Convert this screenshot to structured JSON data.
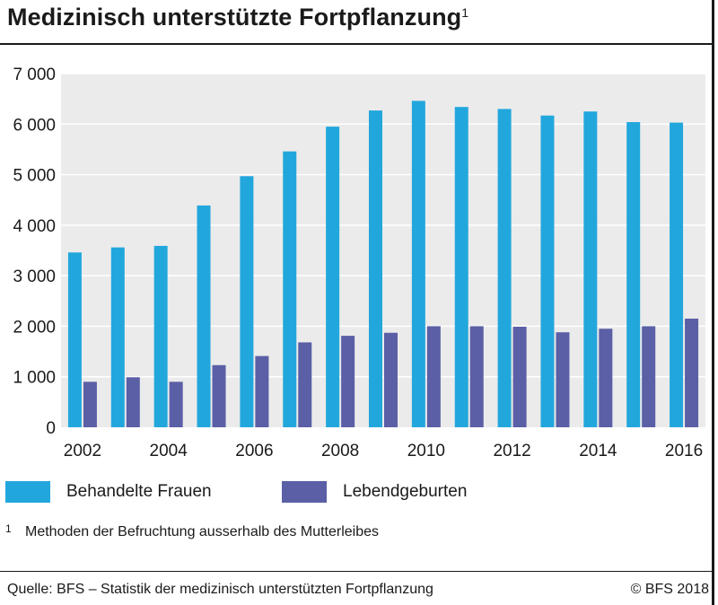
{
  "header": {
    "title": "Medizinisch unterstützte Fortpflanzung",
    "title_footnote_mark": "1"
  },
  "colors": {
    "behandelte": "#22a7dd",
    "lebend": "#5a5fa6",
    "plot_bg": "#ebebeb",
    "grid": "#ffffff"
  },
  "chart_data": {
    "type": "bar",
    "categories": [
      "2002",
      "2003",
      "2004",
      "2005",
      "2006",
      "2007",
      "2008",
      "2009",
      "2010",
      "2011",
      "2012",
      "2013",
      "2014",
      "2015",
      "2016"
    ],
    "x_tick_labels": [
      "2002",
      "",
      "2004",
      "",
      "2006",
      "",
      "2008",
      "",
      "2010",
      "",
      "2012",
      "",
      "2014",
      "",
      "2016"
    ],
    "series": [
      {
        "name": "Behandelte Frauen",
        "values": [
          3460,
          3560,
          3590,
          4390,
          4970,
          5460,
          5950,
          6270,
          6460,
          6340,
          6300,
          6170,
          6250,
          6040,
          6030
        ]
      },
      {
        "name": "Lebendgeburten",
        "values": [
          900,
          990,
          900,
          1230,
          1410,
          1680,
          1810,
          1870,
          2000,
          2000,
          1990,
          1880,
          1950,
          2000,
          2150
        ]
      }
    ],
    "y_ticks": [
      0,
      1000,
      2000,
      3000,
      4000,
      5000,
      6000,
      7000
    ],
    "y_tick_labels": [
      "0",
      "1 000",
      "2 000",
      "3 000",
      "4 000",
      "5 000",
      "6 000",
      "7 000"
    ],
    "ylim": [
      0,
      7000
    ],
    "grid": true,
    "legend_position": "bottom"
  },
  "footnote": {
    "mark": "1",
    "text": "Methoden der Befruchtung ausserhalb des Mutterleibes"
  },
  "footer": {
    "source": "Quelle: BFS – Statistik der medizinisch unterstützten Fortpflanzung",
    "copyright": "© BFS 2018"
  }
}
